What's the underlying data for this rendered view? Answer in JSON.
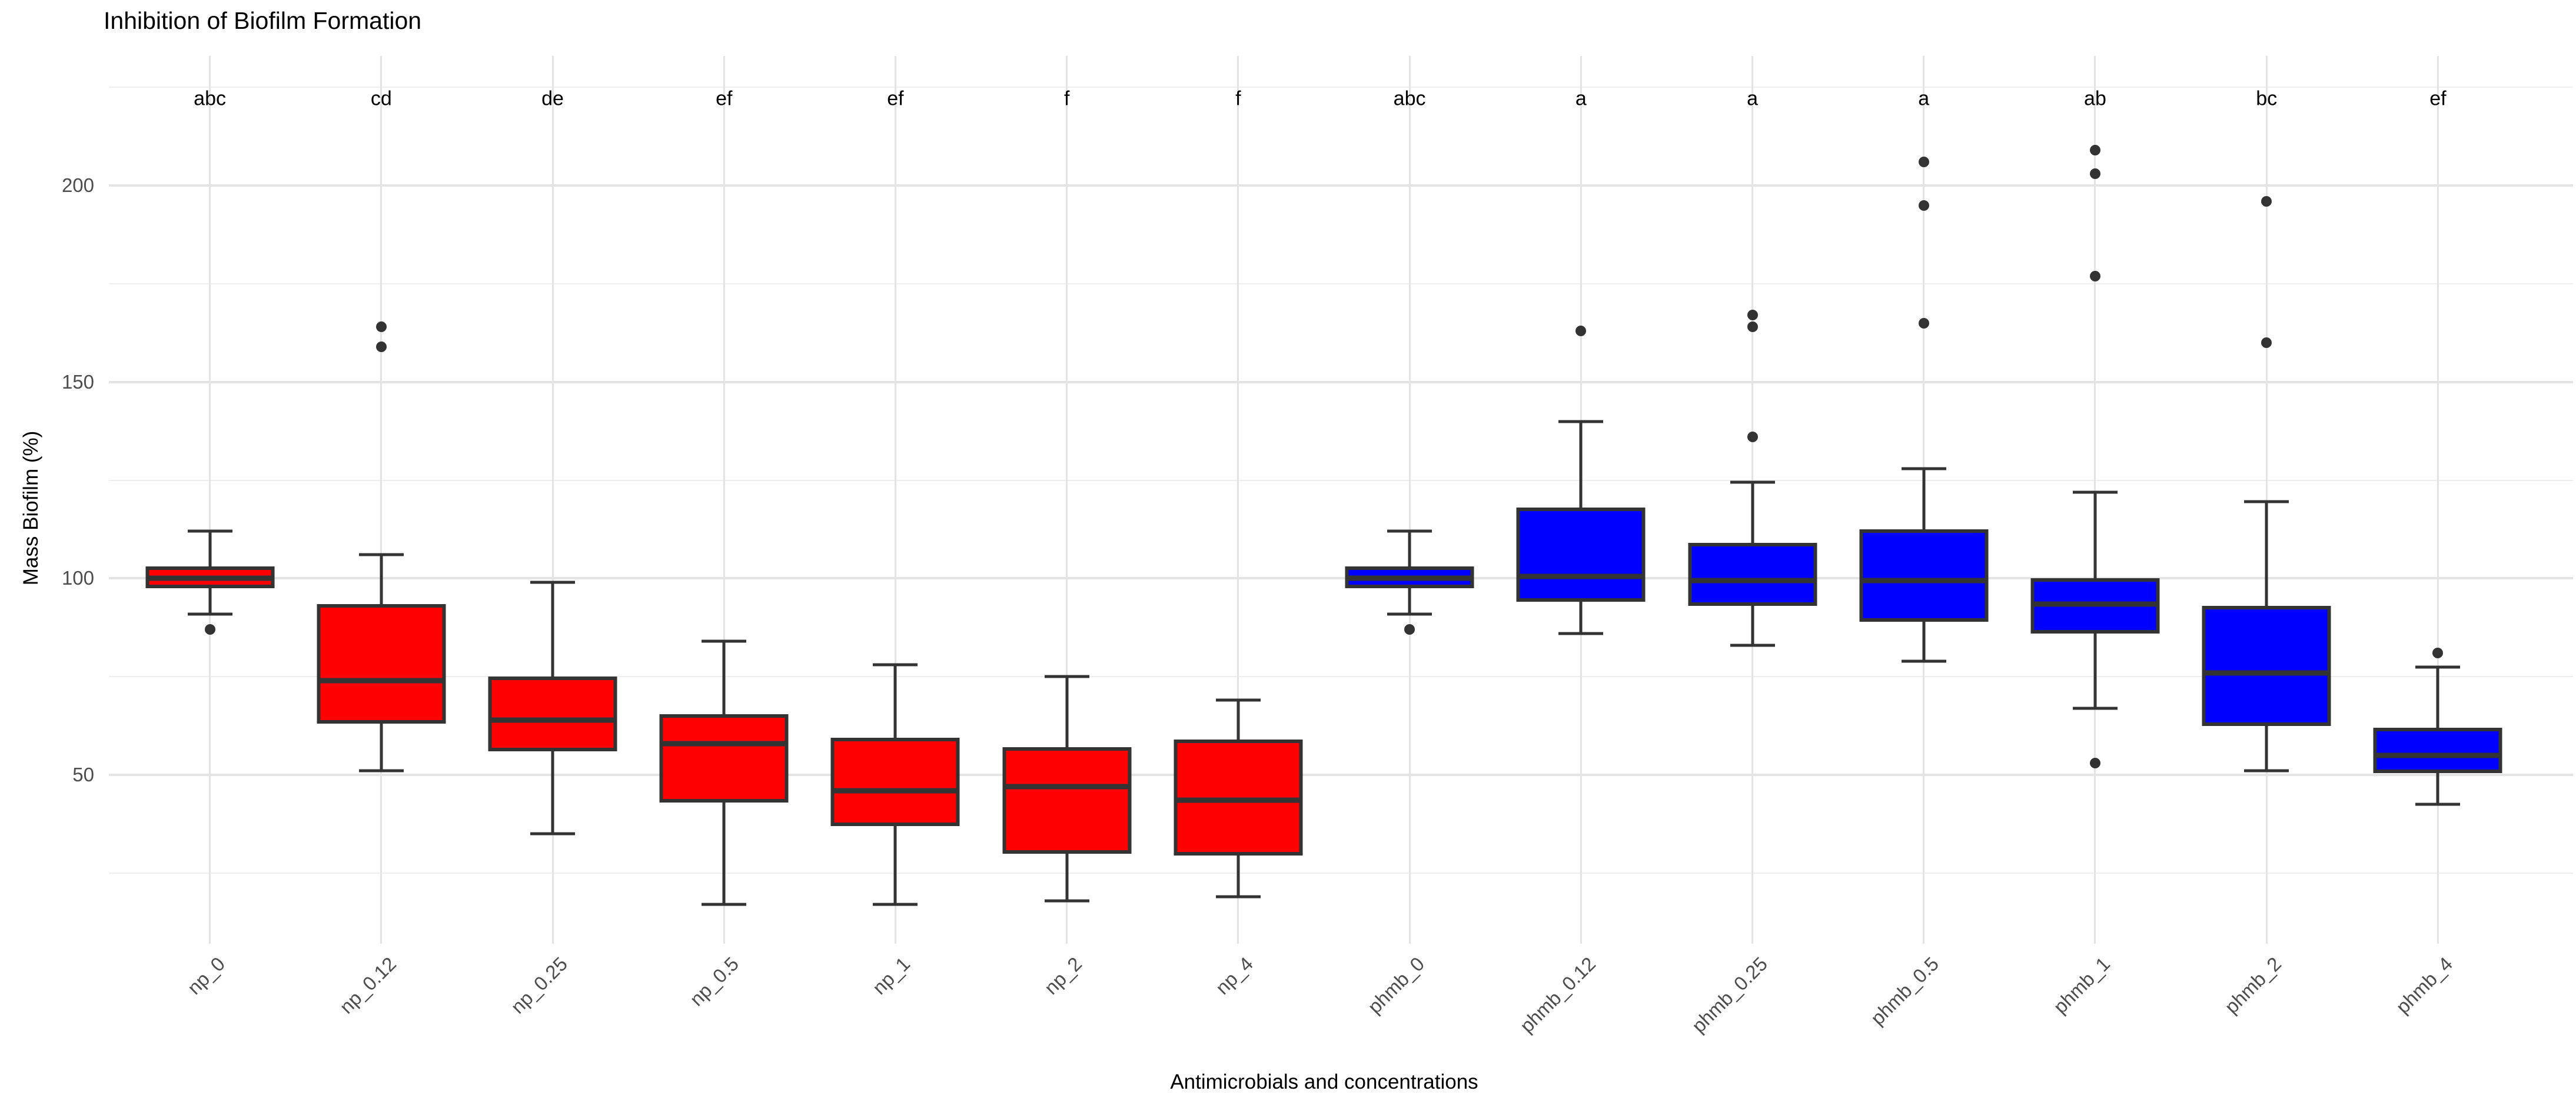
{
  "chart_data": {
    "type": "boxplot",
    "title": "Inhibition of Biofilm Formation",
    "xlabel": "Antimicrobials and concentrations",
    "ylabel": "Mass Biofilm (%)",
    "ylim": [
      7,
      233
    ],
    "y_major_ticks": [
      50,
      100,
      150,
      200
    ],
    "y_minor_ticks": [
      25,
      75,
      125,
      175,
      225
    ],
    "grid": "major and minor horizontal gridlines plus vertical gridline per category, minimal theme, no axis lines, no legend",
    "group_colors": {
      "np": "#ff0000",
      "phmb": "#0000ff"
    },
    "categories": [
      "np_0",
      "np_0.12",
      "np_0.25",
      "np_0.5",
      "np_1",
      "np_2",
      "np_4",
      "phmb_0",
      "phmb_0.12",
      "phmb_0.25",
      "phmb_0.5",
      "phmb_1",
      "phmb_2",
      "phmb_4"
    ],
    "significance_letters": [
      "abc",
      "cd",
      "de",
      "ef",
      "ef",
      "f",
      "f",
      "abc",
      "a",
      "a",
      "a",
      "ab",
      "bc",
      "ef"
    ],
    "boxes": [
      {
        "label": "np_0",
        "group": "np",
        "color": "#ff0000",
        "letter": "abc",
        "whisker_low": 91,
        "q1": 97.5,
        "median": 100,
        "q3": 103,
        "whisker_high": 112,
        "outliers": [
          87
        ]
      },
      {
        "label": "np_0.12",
        "group": "np",
        "color": "#ff0000",
        "letter": "cd",
        "whisker_low": 51,
        "q1": 63,
        "median": 74,
        "q3": 93.5,
        "whisker_high": 106,
        "outliers": [
          159,
          164
        ]
      },
      {
        "label": "np_0.25",
        "group": "np",
        "color": "#ff0000",
        "letter": "de",
        "whisker_low": 35,
        "q1": 56,
        "median": 64,
        "q3": 75,
        "whisker_high": 99,
        "outliers": []
      },
      {
        "label": "np_0.5",
        "group": "np",
        "color": "#ff0000",
        "letter": "ef",
        "whisker_low": 17,
        "q1": 43,
        "median": 58,
        "q3": 65.5,
        "whisker_high": 84,
        "outliers": []
      },
      {
        "label": "np_1",
        "group": "np",
        "color": "#ff0000",
        "letter": "ef",
        "whisker_low": 17,
        "q1": 37,
        "median": 46,
        "q3": 59.5,
        "whisker_high": 78,
        "outliers": []
      },
      {
        "label": "np_2",
        "group": "np",
        "color": "#ff0000",
        "letter": "f",
        "whisker_low": 18,
        "q1": 30,
        "median": 47,
        "q3": 57,
        "whisker_high": 75,
        "outliers": []
      },
      {
        "label": "np_4",
        "group": "np",
        "color": "#ff0000",
        "letter": "f",
        "whisker_low": 19,
        "q1": 29.5,
        "median": 43.5,
        "q3": 59,
        "whisker_high": 69,
        "outliers": []
      },
      {
        "label": "phmb_0",
        "group": "phmb",
        "color": "#0000ff",
        "letter": "abc",
        "whisker_low": 91,
        "q1": 97.5,
        "median": 100,
        "q3": 103,
        "whisker_high": 112,
        "outliers": [
          87
        ]
      },
      {
        "label": "phmb_0.12",
        "group": "phmb",
        "color": "#0000ff",
        "letter": "a",
        "whisker_low": 86,
        "q1": 94,
        "median": 100.5,
        "q3": 118,
        "whisker_high": 140,
        "outliers": [
          163
        ]
      },
      {
        "label": "phmb_0.25",
        "group": "phmb",
        "color": "#0000ff",
        "letter": "a",
        "whisker_low": 83,
        "q1": 93,
        "median": 99.5,
        "q3": 109,
        "whisker_high": 124.5,
        "outliers": [
          136,
          164,
          167
        ]
      },
      {
        "label": "phmb_0.5",
        "group": "phmb",
        "color": "#0000ff",
        "letter": "a",
        "whisker_low": 79,
        "q1": 89,
        "median": 99.5,
        "q3": 112.5,
        "whisker_high": 128,
        "outliers": [
          165,
          195,
          206
        ]
      },
      {
        "label": "phmb_1",
        "group": "phmb",
        "color": "#0000ff",
        "letter": "ab",
        "whisker_low": 67,
        "q1": 86,
        "median": 93.5,
        "q3": 100,
        "whisker_high": 122,
        "outliers": [
          53,
          177,
          203,
          209
        ]
      },
      {
        "label": "phmb_2",
        "group": "phmb",
        "color": "#0000ff",
        "letter": "bc",
        "whisker_low": 51,
        "q1": 62.5,
        "median": 76,
        "q3": 93,
        "whisker_high": 119.5,
        "outliers": [
          160,
          196
        ]
      },
      {
        "label": "phmb_4",
        "group": "phmb",
        "color": "#0000ff",
        "letter": "ef",
        "whisker_low": 42.5,
        "q1": 50.5,
        "median": 55,
        "q3": 62,
        "whisker_high": 77.5,
        "outliers": [
          81
        ]
      }
    ]
  }
}
